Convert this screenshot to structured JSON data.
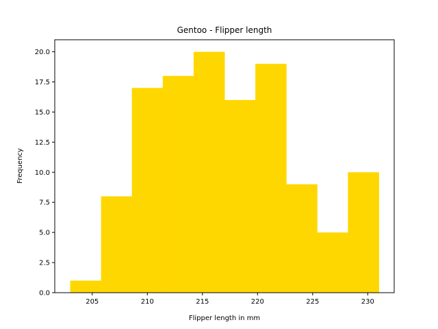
{
  "chart_data": {
    "type": "bar",
    "title": "Gentoo - Flipper length",
    "xlabel": "Flipper length in mm",
    "ylabel": "Frequency",
    "bin_edges": [
      203.0,
      205.8,
      208.6,
      211.4,
      214.2,
      217.0,
      219.8,
      222.6,
      225.4,
      228.2,
      231.0
    ],
    "values": [
      1,
      8,
      17,
      18,
      20,
      16,
      19,
      9,
      5,
      10
    ],
    "xlim": [
      201.6,
      232.4
    ],
    "ylim": [
      0,
      21
    ],
    "xticks": [
      205,
      210,
      215,
      220,
      225,
      230
    ],
    "xtick_labels": [
      "205",
      "210",
      "215",
      "220",
      "225",
      "230"
    ],
    "yticks": [
      0,
      2.5,
      5,
      7.5,
      10,
      12.5,
      15,
      17.5,
      20
    ],
    "ytick_labels": [
      "0.0",
      "2.5",
      "5.0",
      "7.5",
      "10.0",
      "12.5",
      "15.0",
      "17.5",
      "20.0"
    ],
    "grid": false,
    "bar_color": "#FFD700"
  }
}
